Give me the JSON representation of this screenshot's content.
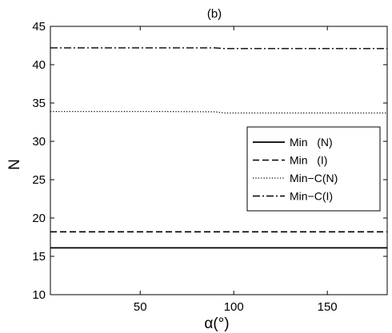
{
  "chart_data": {
    "type": "line",
    "title": "(b)",
    "xlabel": "α(°)",
    "ylabel": "N",
    "xlim": [
      2,
      182
    ],
    "ylim": [
      10,
      45
    ],
    "xticks": [
      50,
      100,
      150
    ],
    "xtick_labels": [
      "50",
      "100",
      "150"
    ],
    "yticks": [
      10,
      15,
      20,
      25,
      30,
      35,
      40,
      45
    ],
    "ytick_labels": [
      "10",
      "15",
      "20",
      "25",
      "30",
      "35",
      "40",
      "45"
    ],
    "grid": false,
    "legend_position": "right",
    "series": [
      {
        "name": "Min   (N)",
        "style": "solid",
        "x": [
          2,
          30,
          60,
          90,
          120,
          150,
          182
        ],
        "y": [
          16.1,
          16.1,
          16.1,
          16.1,
          16.1,
          16.1,
          16.1
        ]
      },
      {
        "name": "Min   (I)",
        "style": "dashed",
        "x": [
          2,
          30,
          60,
          90,
          120,
          150,
          182
        ],
        "y": [
          18.2,
          18.2,
          18.2,
          18.2,
          18.2,
          18.2,
          18.2
        ]
      },
      {
        "name": "Min−C(N)",
        "style": "dotted",
        "x": [
          2,
          30,
          60,
          90,
          95,
          120,
          150,
          182
        ],
        "y": [
          33.9,
          33.9,
          33.9,
          33.85,
          33.7,
          33.7,
          33.7,
          33.7
        ]
      },
      {
        "name": "Min−C(I)",
        "style": "dashdot",
        "x": [
          2,
          30,
          60,
          90,
          95,
          120,
          150,
          182
        ],
        "y": [
          42.2,
          42.2,
          42.2,
          42.2,
          42.1,
          42.1,
          42.1,
          42.1
        ]
      }
    ]
  }
}
